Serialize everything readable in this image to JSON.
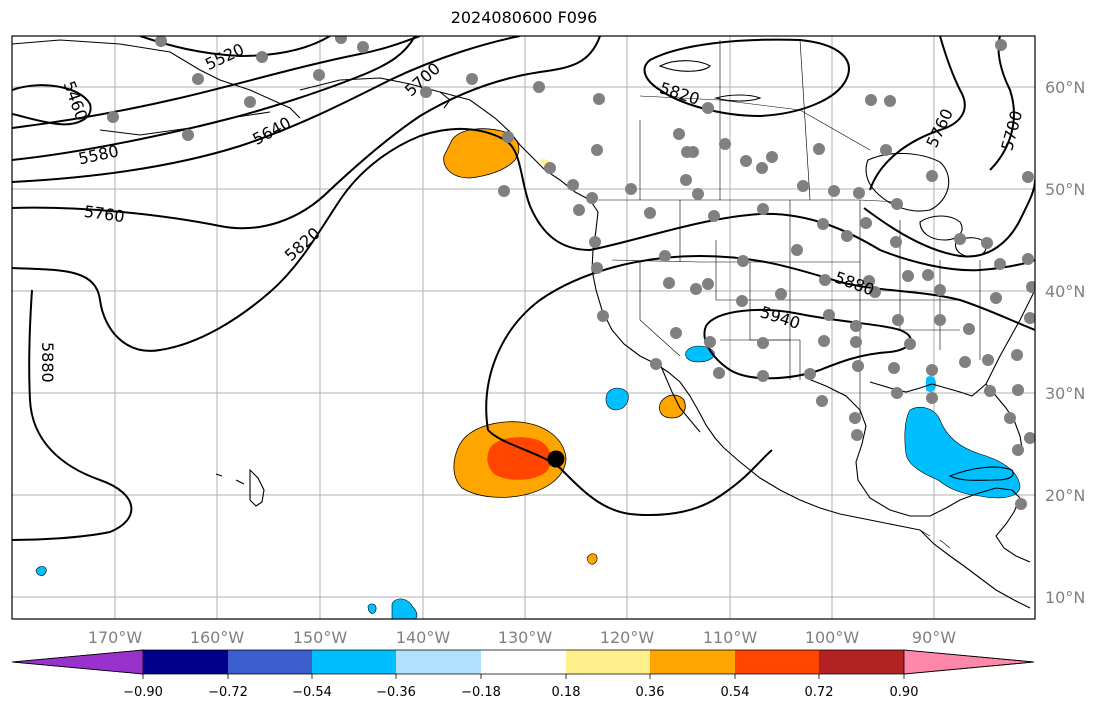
{
  "title": "2024080600 F096",
  "map": {
    "lon_labels": [
      "170°W",
      "160°W",
      "150°W",
      "140°W",
      "130°W",
      "120°W",
      "110°W",
      "100°W",
      "90°W"
    ],
    "lat_labels": [
      "60°N",
      "50°N",
      "40°N",
      "30°N",
      "20°N",
      "10°N"
    ],
    "contour_labels": [
      {
        "text": "5460"
      },
      {
        "text": "5520"
      },
      {
        "text": "5580"
      },
      {
        "text": "5640"
      },
      {
        "text": "5700"
      },
      {
        "text": "5820"
      },
      {
        "text": "5760"
      },
      {
        "text": "5820"
      },
      {
        "text": "5880"
      },
      {
        "text": "5940"
      },
      {
        "text": "5880"
      },
      {
        "text": "5760"
      },
      {
        "text": "5700"
      }
    ],
    "colors": {
      "gridline": "#b0b0b0",
      "station_dot": "#808080",
      "marker": "#000000",
      "contour": "#000000"
    }
  },
  "colorbar": {
    "tick_labels": [
      "−0.90",
      "−0.72",
      "−0.54",
      "−0.36",
      "−0.18",
      "0.18",
      "0.36",
      "0.54",
      "0.72",
      "0.90"
    ],
    "colors": [
      "#9932cc",
      "#00008b",
      "#3a5fcd",
      "#00bfff",
      "#b0e2ff",
      "#ffffff",
      "#fff08c",
      "#ffa500",
      "#ff4500",
      "#b22222",
      "#ff88aa"
    ]
  }
}
